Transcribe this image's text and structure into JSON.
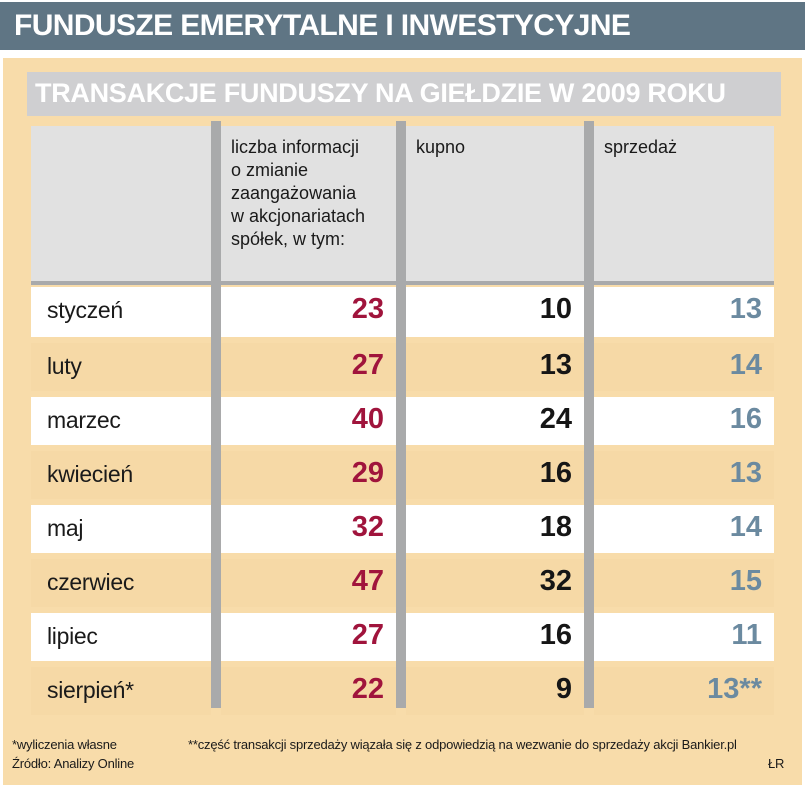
{
  "banner": {
    "title": "FUNDUSZE EMERYTALNE I INWESTYCYJNE"
  },
  "chart_data": {
    "type": "table",
    "title": "TRANSAKCJE FUNDUSZY NA GIEŁDZIE W 2009 ROKU",
    "columns": [
      "",
      "liczba informacji o zmianie zaangażowania w akcjonariatach spółek, w tym:",
      "kupno",
      "sprzedaż"
    ],
    "header_lines": [
      [
        "liczba informacji",
        "o zmianie",
        "zaangażowania",
        "w akcjonariatach",
        "spółek, w tym:"
      ],
      [
        "kupno"
      ],
      [
        "sprzedaż"
      ]
    ],
    "rows": [
      {
        "month": "styczeń",
        "total": "23",
        "buy": "10",
        "sell": "13"
      },
      {
        "month": "luty",
        "total": "27",
        "buy": "13",
        "sell": "14"
      },
      {
        "month": "marzec",
        "total": "40",
        "buy": "24",
        "sell": "16"
      },
      {
        "month": "kwiecień",
        "total": "29",
        "buy": "16",
        "sell": "13"
      },
      {
        "month": "maj",
        "total": "32",
        "buy": "18",
        "sell": "14"
      },
      {
        "month": "czerwiec",
        "total": "47",
        "buy": "32",
        "sell": "15"
      },
      {
        "month": "lipiec",
        "total": "27",
        "buy": "16",
        "sell": "11"
      },
      {
        "month": "sierpień*",
        "total": "22",
        "buy": "9",
        "sell": "13**"
      }
    ],
    "colors": {
      "total": "#a0143c",
      "buy": "#161616",
      "sell": "#6b8aa0"
    }
  },
  "footnotes": {
    "note1": "*wyliczenia własne",
    "source": "Źródło: Analizy Online",
    "note2": "**część transakcji sprzedaży wiązała się z odpowiedzią na wezwanie do sprzedaży akcji Bankier.pl",
    "credit": "ŁR"
  }
}
